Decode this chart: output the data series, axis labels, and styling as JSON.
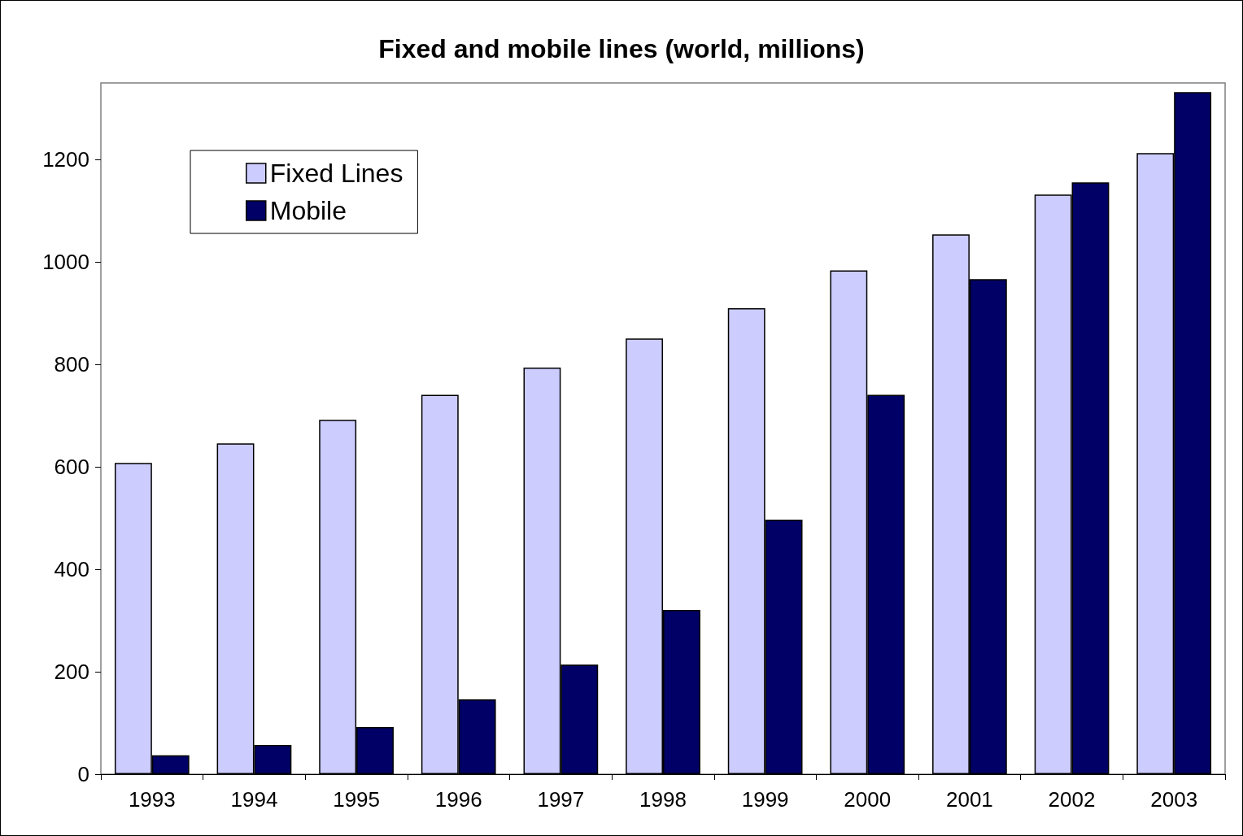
{
  "chart_data": {
    "type": "bar",
    "title": "Fixed and mobile lines (world, millions)",
    "categories": [
      "1993",
      "1994",
      "1995",
      "1996",
      "1997",
      "1998",
      "1999",
      "2000",
      "2001",
      "2002",
      "2003"
    ],
    "series": [
      {
        "name": "Fixed Lines",
        "color": "#ccccff",
        "values": [
          608,
          646,
          692,
          741,
          794,
          851,
          910,
          984,
          1054,
          1132,
          1213
        ]
      },
      {
        "name": "Mobile",
        "color": "#000066",
        "values": [
          37,
          57,
          92,
          146,
          214,
          321,
          497,
          741,
          967,
          1156,
          1332
        ]
      }
    ],
    "ylim": [
      0,
      1350
    ],
    "yticks": [
      0,
      200,
      400,
      600,
      800,
      1000,
      1200
    ],
    "grid": false,
    "legend": "top left"
  }
}
